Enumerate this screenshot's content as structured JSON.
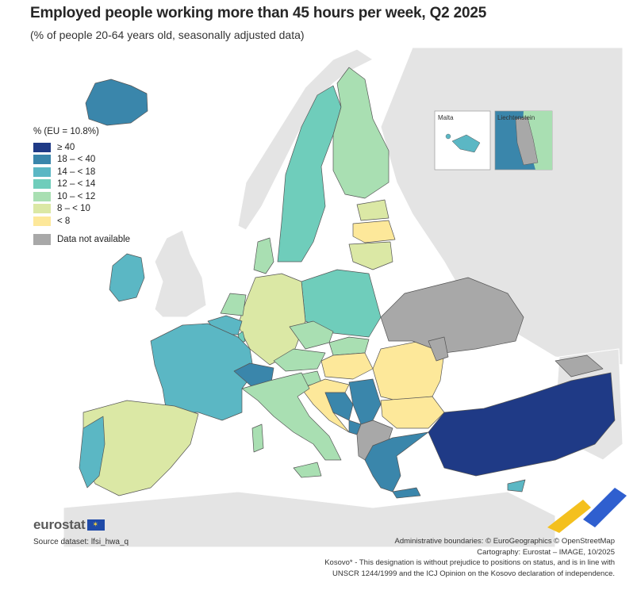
{
  "title": "Employed people working more than 45 hours per week, Q2 2025",
  "subtitle": "(% of people 20-64 years old, seasonally adjusted data)",
  "legend": {
    "title": "% (EU = 10.8%)",
    "classes": [
      {
        "label": "≥ 40",
        "color": "#1f3a86"
      },
      {
        "label": "18 – < 40",
        "color": "#3a86ab"
      },
      {
        "label": "14 – < 18",
        "color": "#5bb7c4"
      },
      {
        "label": "12 – < 14",
        "color": "#6fcdbb"
      },
      {
        "label": "10 – < 12",
        "color": "#a9dfb2"
      },
      {
        "label": "8 – < 10",
        "color": "#dbe8a5"
      },
      {
        "label": "< 8",
        "color": "#fde89a"
      }
    ],
    "na_label": "Data not available",
    "na_color": "#a8a8a8"
  },
  "colors": {
    "background_land": "#e4e4e4",
    "sea": "#ffffff",
    "border": "#555555"
  },
  "insets": {
    "malta": "Malta",
    "liechtenstein": "Liechtenstein"
  },
  "logo": "eurostat",
  "source": "Source dataset: lfsi_hwa_q",
  "footer": {
    "line1": "Administrative boundaries: © EuroGeographics © OpenStreetMap",
    "line2": "Cartography: Eurostat – IMAGE, 10/2025",
    "line3": "Kosovo* - This designation is without prejudice to positions on status, and is in line with",
    "line4": "UNSCR 1244/1999 and the ICJ Opinion on the Kosovo declaration of independence."
  }
}
